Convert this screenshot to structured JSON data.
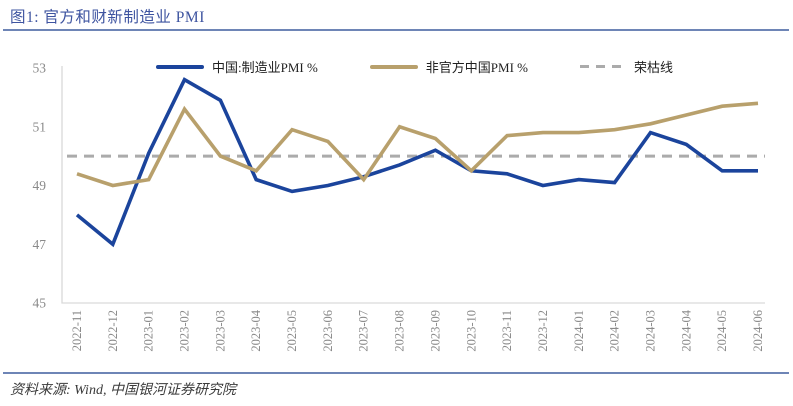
{
  "header": {
    "title": "图1: 官方和财新制造业 PMI"
  },
  "footer": {
    "source": "资料来源: Wind, 中国银河证券研究院"
  },
  "colors": {
    "official_line": "#1b449c",
    "caixin_line": "#b8a06c",
    "reference_line": "#ababab",
    "title_blue": "#3e54a0",
    "rule_blue": "#6e85b6",
    "axis_text": "#8a8a8a",
    "axis_line": "#d9d9d9"
  },
  "chart_data": {
    "type": "line",
    "title": "官方和财新制造业 PMI",
    "xlabel": "",
    "ylabel": "",
    "ylim": [
      45,
      53
    ],
    "yticks": [
      45,
      47,
      49,
      51,
      53
    ],
    "grid": false,
    "legend_position": "top",
    "x": [
      "2022-11",
      "2022-12",
      "2023-01",
      "2023-02",
      "2023-03",
      "2023-04",
      "2023-05",
      "2023-06",
      "2023-07",
      "2023-08",
      "2023-09",
      "2023-10",
      "2023-11",
      "2023-12",
      "2024-01",
      "2024-02",
      "2024-03",
      "2024-04",
      "2024-05",
      "2024-06"
    ],
    "series": [
      {
        "name": "中国:制造业PMI %",
        "color": "#1b449c",
        "values": [
          48.0,
          47.0,
          50.1,
          52.6,
          51.9,
          49.2,
          48.8,
          49.0,
          49.3,
          49.7,
          50.2,
          49.5,
          49.4,
          49.0,
          49.2,
          49.1,
          50.8,
          50.4,
          49.5,
          49.5
        ]
      },
      {
        "name": "非官方中国PMI %",
        "color": "#b8a06c",
        "values": [
          49.4,
          49.0,
          49.2,
          51.6,
          50.0,
          49.5,
          50.9,
          50.5,
          49.2,
          51.0,
          50.6,
          49.5,
          50.7,
          50.8,
          50.8,
          50.9,
          51.1,
          51.4,
          51.7,
          51.8
        ]
      }
    ],
    "reference_line": {
      "label": "荣枯线",
      "value": 50,
      "style": "dashed",
      "color": "#ababab"
    }
  }
}
